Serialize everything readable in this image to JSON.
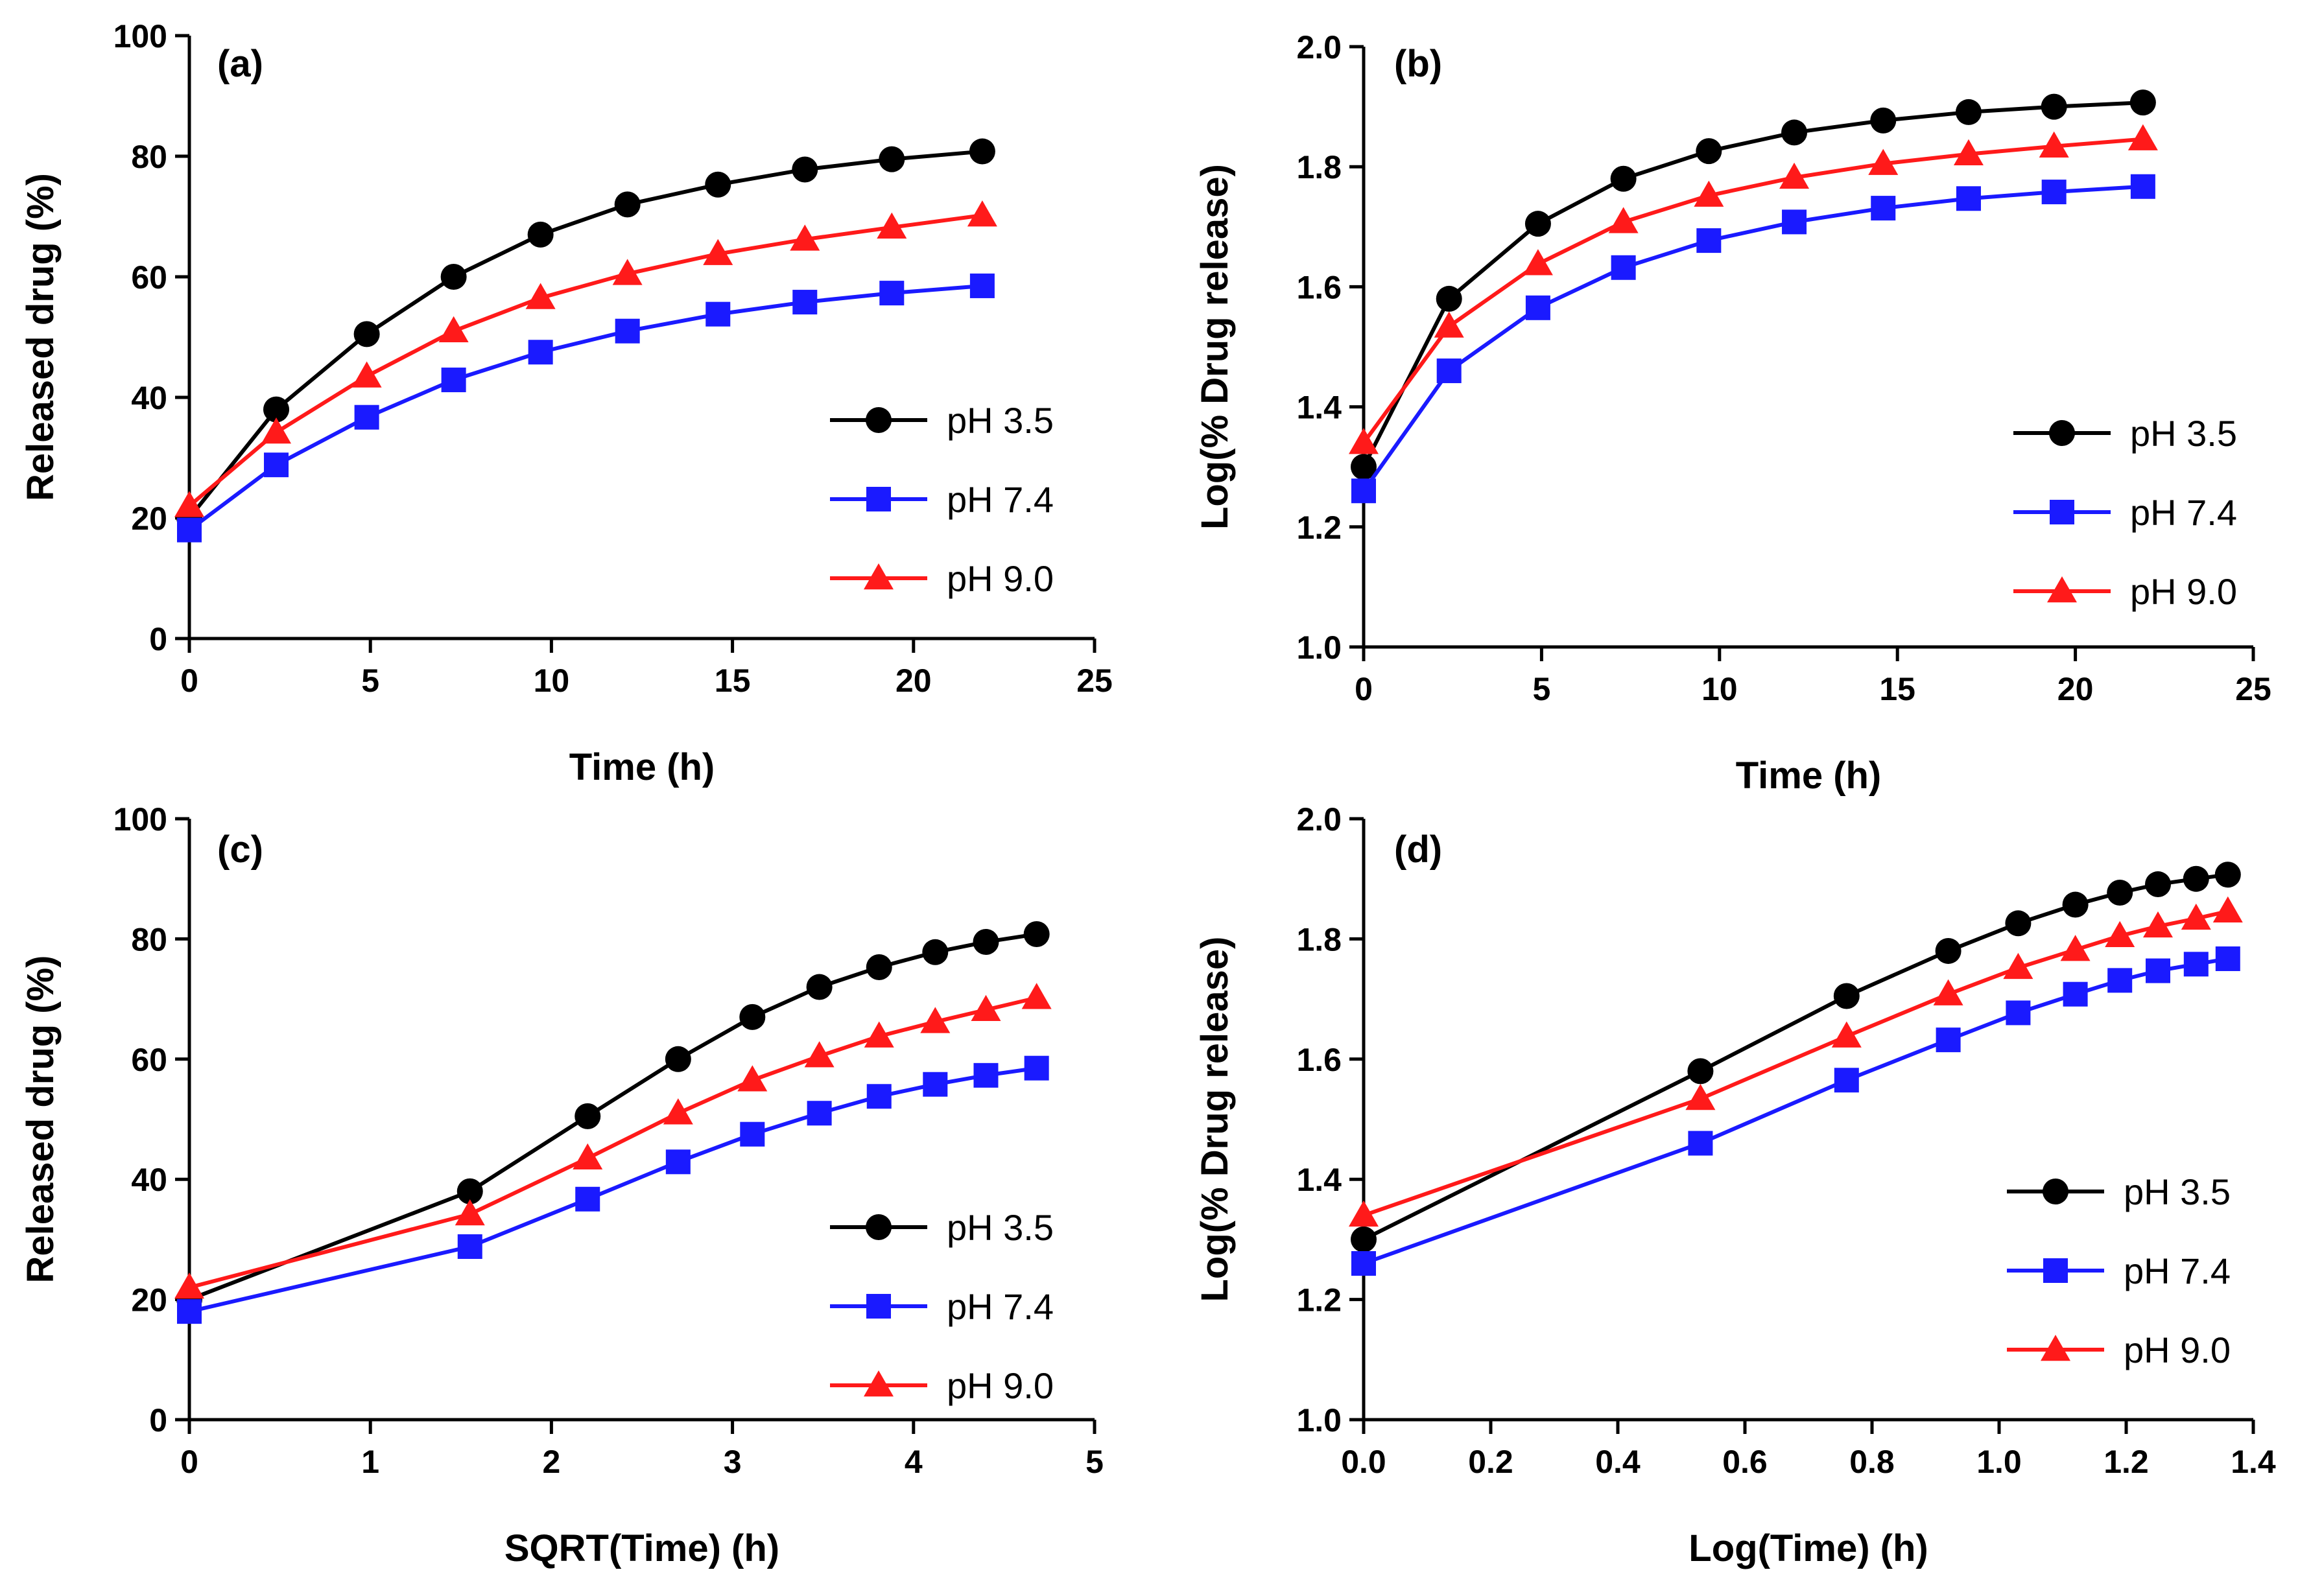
{
  "chart_data": [
    {
      "type": "line",
      "panel_label": "(a)",
      "xlabel": "Time (h)",
      "ylabel": "Released drug (%)",
      "xlim": [
        0,
        25
      ],
      "ylim": [
        0,
        100
      ],
      "xticks": [
        0,
        5,
        10,
        15,
        20,
        25
      ],
      "yticks": [
        0,
        20,
        40,
        60,
        80,
        100
      ],
      "xtick_labels": [
        "0",
        "5",
        "10",
        "15",
        "20",
        "25"
      ],
      "ytick_labels": [
        "0",
        "20",
        "40",
        "60",
        "80",
        "100"
      ],
      "grid": false,
      "legend_position": "lower-right",
      "x": [
        0,
        2.4,
        4.9,
        7.3,
        9.7,
        12.1,
        14.6,
        17,
        19.4,
        21.9
      ],
      "series": [
        {
          "name": "pH 3.5",
          "color": "#000000",
          "marker": "circle",
          "values": [
            20,
            38,
            50.5,
            60,
            67,
            72,
            75.3,
            77.8,
            79.5,
            80.8
          ]
        },
        {
          "name": "pH 7.4",
          "color": "#1a1aff",
          "marker": "square",
          "values": [
            18,
            28.8,
            36.7,
            42.9,
            47.5,
            51,
            53.8,
            55.8,
            57.3,
            58.5
          ]
        },
        {
          "name": "pH 9.0",
          "color": "#ff1a1a",
          "marker": "triangle",
          "values": [
            22,
            34.2,
            43.5,
            51,
            56.5,
            60.5,
            63.8,
            66.2,
            68.2,
            70.2
          ]
        }
      ]
    },
    {
      "type": "line",
      "panel_label": "(b)",
      "xlabel": "Time (h)",
      "ylabel": "Log(% Drug release)",
      "xlim": [
        0,
        25
      ],
      "ylim": [
        1.0,
        2.0
      ],
      "xticks": [
        0,
        5,
        10,
        15,
        20,
        25
      ],
      "yticks": [
        1.0,
        1.2,
        1.4,
        1.6,
        1.8,
        2.0
      ],
      "xtick_labels": [
        "0",
        "5",
        "10",
        "15",
        "20",
        "25"
      ],
      "ytick_labels": [
        "1.0",
        "1.2",
        "1.4",
        "1.6",
        "1.8",
        "2.0"
      ],
      "grid": false,
      "legend_position": "lower-right",
      "x": [
        0,
        2.4,
        4.9,
        7.3,
        9.7,
        12.1,
        14.6,
        17,
        19.4,
        21.9
      ],
      "series": [
        {
          "name": "pH 3.5",
          "color": "#000000",
          "marker": "circle",
          "values": [
            1.3,
            1.58,
            1.705,
            1.78,
            1.826,
            1.857,
            1.877,
            1.891,
            1.9,
            1.907
          ]
        },
        {
          "name": "pH 7.4",
          "color": "#1a1aff",
          "marker": "square",
          "values": [
            1.26,
            1.46,
            1.565,
            1.632,
            1.677,
            1.708,
            1.731,
            1.747,
            1.758,
            1.767
          ]
        },
        {
          "name": "pH 9.0",
          "color": "#ff1a1a",
          "marker": "triangle",
          "values": [
            1.34,
            1.534,
            1.638,
            1.708,
            1.752,
            1.782,
            1.805,
            1.821,
            1.834,
            1.846
          ]
        }
      ]
    },
    {
      "type": "line",
      "panel_label": "(c)",
      "xlabel": "SQRT(Time) (h)",
      "ylabel": "Released drug (%)",
      "xlim": [
        0,
        5
      ],
      "ylim": [
        0,
        100
      ],
      "xticks": [
        0,
        1,
        2,
        3,
        4,
        5
      ],
      "yticks": [
        0,
        20,
        40,
        60,
        80,
        100
      ],
      "xtick_labels": [
        "0",
        "1",
        "2",
        "3",
        "4",
        "5"
      ],
      "ytick_labels": [
        "0",
        "20",
        "40",
        "60",
        "80",
        "100"
      ],
      "grid": false,
      "legend_position": "lower-right",
      "x": [
        0,
        1.55,
        2.2,
        2.7,
        3.11,
        3.48,
        3.81,
        4.12,
        4.4,
        4.68
      ],
      "series": [
        {
          "name": "pH 3.5",
          "color": "#000000",
          "marker": "circle",
          "values": [
            20,
            38,
            50.5,
            60,
            67,
            72,
            75.3,
            77.8,
            79.5,
            80.8
          ]
        },
        {
          "name": "pH 7.4",
          "color": "#1a1aff",
          "marker": "square",
          "values": [
            18,
            28.8,
            36.7,
            42.9,
            47.5,
            51,
            53.8,
            55.8,
            57.3,
            58.5
          ]
        },
        {
          "name": "pH 9.0",
          "color": "#ff1a1a",
          "marker": "triangle",
          "values": [
            22,
            34.2,
            43.5,
            51,
            56.5,
            60.5,
            63.8,
            66.2,
            68.2,
            70.2
          ]
        }
      ]
    },
    {
      "type": "line",
      "panel_label": "(d)",
      "xlabel": "Log(Time) (h)",
      "ylabel": "Log(% Drug release)",
      "xlim": [
        0,
        1.4
      ],
      "ylim": [
        1.0,
        2.0
      ],
      "xticks": [
        0,
        0.2,
        0.4,
        0.6,
        0.8,
        1.0,
        1.2,
        1.4
      ],
      "yticks": [
        1.0,
        1.2,
        1.4,
        1.6,
        1.8,
        2.0
      ],
      "xtick_labels": [
        "0.0",
        "0.2",
        "0.4",
        "0.6",
        "0.8",
        "1.0",
        "1.2",
        "1.4"
      ],
      "ytick_labels": [
        "1.0",
        "1.2",
        "1.4",
        "1.6",
        "1.8",
        "2.0"
      ],
      "grid": false,
      "legend_position": "lower-right",
      "x": [
        0,
        0.53,
        0.76,
        0.92,
        1.03,
        1.12,
        1.19,
        1.25,
        1.31,
        1.36
      ],
      "series": [
        {
          "name": "pH 3.5",
          "color": "#000000",
          "marker": "circle",
          "values": [
            1.3,
            1.58,
            1.705,
            1.78,
            1.826,
            1.857,
            1.877,
            1.891,
            1.9,
            1.907
          ]
        },
        {
          "name": "pH 7.4",
          "color": "#1a1aff",
          "marker": "square",
          "values": [
            1.26,
            1.46,
            1.565,
            1.632,
            1.677,
            1.708,
            1.731,
            1.747,
            1.758,
            1.767
          ]
        },
        {
          "name": "pH 9.0",
          "color": "#ff1a1a",
          "marker": "triangle",
          "values": [
            1.34,
            1.534,
            1.638,
            1.708,
            1.752,
            1.782,
            1.805,
            1.821,
            1.834,
            1.846
          ]
        }
      ]
    }
  ]
}
